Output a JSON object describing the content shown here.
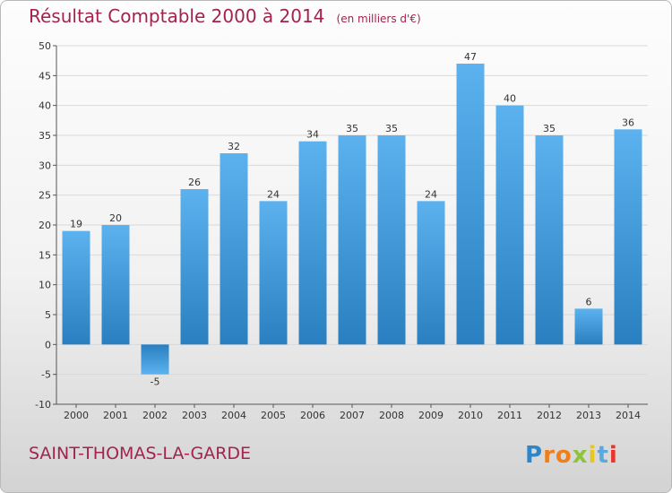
{
  "chart_data": {
    "type": "bar",
    "title": "Résultat Comptable 2000 à 2014",
    "unit": "(en milliers d'€)",
    "categories": [
      "2000",
      "2001",
      "2002",
      "2003",
      "2004",
      "2005",
      "2006",
      "2007",
      "2008",
      "2009",
      "2010",
      "2011",
      "2012",
      "2013",
      "2014"
    ],
    "values": [
      19,
      20,
      -5,
      26,
      32,
      24,
      34,
      35,
      35,
      24,
      47,
      40,
      35,
      6,
      36
    ],
    "ylim": [
      -10,
      50
    ],
    "yticks": [
      -10,
      -5,
      0,
      5,
      10,
      15,
      20,
      25,
      30,
      35,
      40,
      45,
      50
    ],
    "grid": true,
    "bar_color": "#4aa3e6"
  },
  "footer": {
    "commune": "SAINT-THOMAS-LA-GARDE",
    "logo": "Proxiti"
  }
}
